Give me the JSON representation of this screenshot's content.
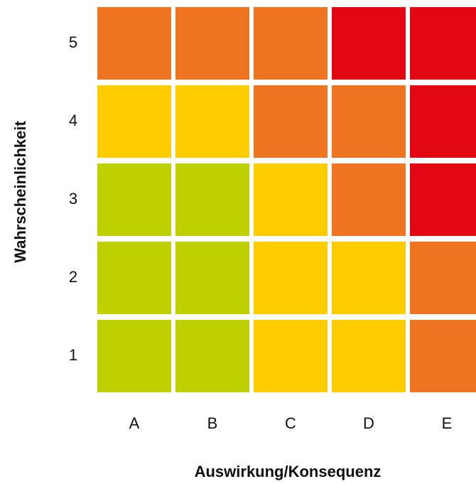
{
  "x_axis_title": "Auswirkung/Konsequenz",
  "y_axis_title": "Wahrscheinlichkeit",
  "columns": [
    "A",
    "B",
    "C",
    "D",
    "E"
  ],
  "rows": [
    {
      "label": "5",
      "cells": [
        "#ee7421",
        "#ee7421",
        "#ee7421",
        "#e30613",
        "#e30613"
      ]
    },
    {
      "label": "4",
      "cells": [
        "#ffcc00",
        "#ffcc00",
        "#ee7421",
        "#ee7421",
        "#e30613"
      ]
    },
    {
      "label": "3",
      "cells": [
        "#bfd000",
        "#bfd000",
        "#ffcc00",
        "#ee7421",
        "#e30613"
      ]
    },
    {
      "label": "2",
      "cells": [
        "#bfd000",
        "#bfd000",
        "#ffcc00",
        "#ffcc00",
        "#ee7421"
      ]
    },
    {
      "label": "1",
      "cells": [
        "#bfd000",
        "#bfd000",
        "#ffcc00",
        "#ffcc00",
        "#ee7421"
      ]
    }
  ]
}
